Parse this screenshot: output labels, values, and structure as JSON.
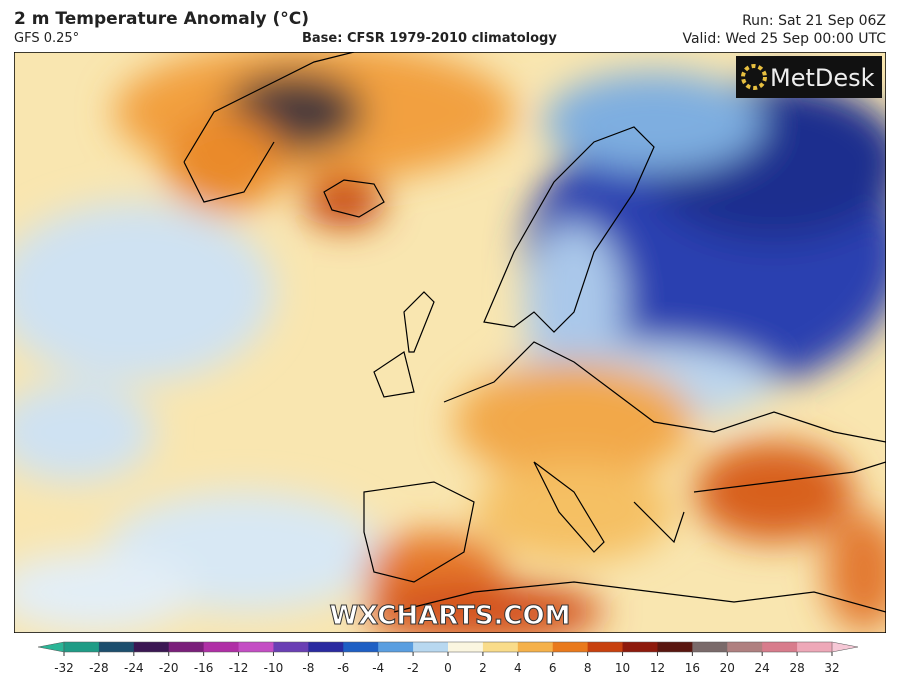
{
  "header": {
    "title": "2 m Temperature Anomaly (°C)",
    "model": "GFS 0.25°",
    "base": "Base: CFSR 1979-2010 climatology",
    "run": "Run: Sat 21 Sep 06Z",
    "valid": "Valid: Wed 25 Sep 00:00 UTC"
  },
  "logo": "MetDesk",
  "watermark": "WXCHARTS.COM",
  "colorbar": {
    "ticks": [
      -32,
      -28,
      -24,
      -20,
      -16,
      -12,
      -10,
      -8,
      -6,
      -4,
      -2,
      0,
      2,
      4,
      6,
      8,
      10,
      12,
      16,
      20,
      24,
      28,
      32
    ],
    "colors": [
      "#1f9c86",
      "#1d4f6e",
      "#3b1753",
      "#7a1f7a",
      "#b02fa6",
      "#c44ec4",
      "#6a3fb4",
      "#2a2aa0",
      "#1e5fc4",
      "#5a9ee0",
      "#b8d8f0",
      "#fbf6e0",
      "#f9dc8a",
      "#f5b14a",
      "#e9791c",
      "#c8400e",
      "#8e1a0c",
      "#5a1610",
      "#7a6a6a",
      "#b08080",
      "#d87c8c",
      "#eea8b8"
    ],
    "low_color": "#2bb596",
    "high_color": "#f6c8d6"
  }
}
